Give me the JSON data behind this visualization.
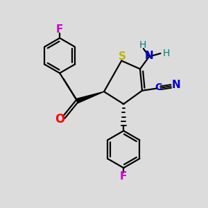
{
  "background_color": "#dcdcdc",
  "bond_color": "#000000",
  "sulfur_color": "#b8b800",
  "oxygen_color": "#ff0000",
  "nitrogen_color": "#0000cc",
  "fluorine_color": "#cc00cc",
  "nh_color": "#008080",
  "figsize": [
    3.0,
    3.0
  ],
  "dpi": 100,
  "xlim": [
    0,
    10
  ],
  "ylim": [
    0,
    10
  ]
}
